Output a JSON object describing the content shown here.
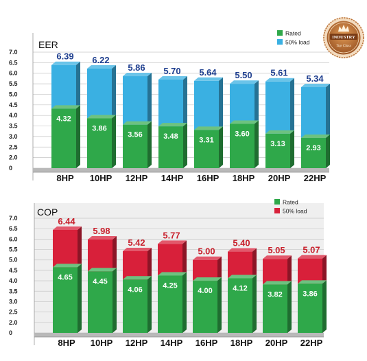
{
  "chart_data": [
    {
      "type": "bar",
      "title": "EER",
      "categories": [
        "8HP",
        "10HP",
        "12HP",
        "14HP",
        "16HP",
        "18HP",
        "20HP",
        "22HP"
      ],
      "series": [
        {
          "name": "Rated",
          "values": [
            4.32,
            3.86,
            3.56,
            3.48,
            3.31,
            3.6,
            3.13,
            2.93
          ],
          "color": "#2fa84a"
        },
        {
          "name": "50% load",
          "values": [
            6.39,
            6.22,
            5.86,
            5.7,
            5.64,
            5.5,
            5.61,
            5.34
          ],
          "color": "#3ab0e2"
        }
      ],
      "value_labels": {
        "rated": [
          "4.32",
          "3.86",
          "3.56",
          "3.48",
          "3.31",
          "3.60",
          "3.13",
          "2.93"
        ],
        "load": [
          "6.39",
          "6.22",
          "5.86",
          "5.70",
          "5.64",
          "5.50",
          "5.61",
          "5.34"
        ]
      },
      "top_label_color": "#1f3f8f",
      "yticks": [
        "7.0",
        "6.5",
        "6.0",
        "5.5",
        "5.0",
        "4.5",
        "4.0",
        "3.5",
        "3.0",
        "2.5",
        "2.0",
        "0"
      ],
      "ylim": [
        0,
        7.0
      ],
      "grid": true,
      "legend": "top-right"
    },
    {
      "type": "bar",
      "title": "COP",
      "categories": [
        "8HP",
        "10HP",
        "12HP",
        "14HP",
        "16HP",
        "18HP",
        "20HP",
        "22HP"
      ],
      "series": [
        {
          "name": "Rated",
          "values": [
            4.65,
            4.45,
            4.06,
            4.25,
            4.0,
            4.12,
            3.82,
            3.86
          ],
          "color": "#2fa84a"
        },
        {
          "name": "50% load",
          "values": [
            6.44,
            5.98,
            5.42,
            5.77,
            5.0,
            5.4,
            5.05,
            5.07
          ],
          "color": "#d8203a"
        }
      ],
      "value_labels": {
        "rated": [
          "4.65",
          "4.45",
          "4.06",
          "4.25",
          "4.00",
          "4.12",
          "3.82",
          "3.86"
        ],
        "load": [
          "6.44",
          "5.98",
          "5.42",
          "5.77",
          "5.00",
          "5.40",
          "5.05",
          "5.07"
        ]
      },
      "top_label_color": "#c8202c",
      "yticks": [
        "7.0",
        "6.5",
        "6.0",
        "5.5",
        "5.0",
        "4.5",
        "4.0",
        "3.5",
        "3.0",
        "2.5",
        "2.0",
        "0"
      ],
      "ylim": [
        0,
        7.0
      ],
      "grid": true,
      "legend": "top-right"
    }
  ],
  "badge": {
    "line1": "INDUSTRY",
    "line2": "Top Class",
    "icon": "crown-icon"
  }
}
